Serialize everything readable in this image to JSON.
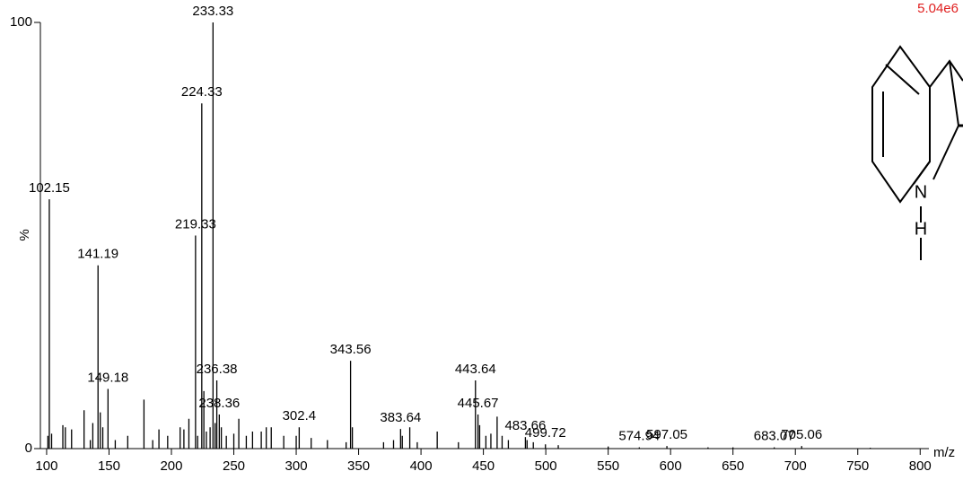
{
  "chart_data": {
    "type": "stick",
    "intensity_label": "5.04e6",
    "xlabel": "m/z",
    "ylabel": "%",
    "xlim": [
      95,
      807
    ],
    "ylim": [
      0,
      100
    ],
    "xticks": [
      100,
      150,
      200,
      250,
      300,
      350,
      400,
      450,
      500,
      550,
      600,
      650,
      700,
      750,
      800
    ],
    "yticks": [
      0,
      100
    ],
    "series": [
      {
        "color": "#000000",
        "show_labels": true,
        "x": [
          102.15,
          141.19,
          149.18,
          219.33,
          224.33,
          233.33,
          236.38,
          238.36,
          302.4,
          343.56,
          383.64,
          443.64,
          445.67,
          483.66,
          499.72,
          574.94,
          597.05,
          683.07,
          705.06
        ],
        "values": [
          58.5,
          43,
          14,
          50,
          81,
          100,
          16,
          8,
          5,
          20.6,
          4.6,
          16,
          8,
          2.7,
          1,
          0.3,
          0.6,
          0.3,
          0.6
        ]
      },
      {
        "color": "#000000",
        "show_labels": false,
        "x": [
          101,
          104,
          113,
          115,
          120,
          130,
          135,
          137,
          143,
          145,
          155,
          165,
          178,
          185,
          190,
          197,
          207,
          210,
          214,
          221,
          226,
          228,
          231,
          235,
          240,
          244,
          250,
          254,
          260,
          265,
          272,
          276,
          280,
          290,
          300,
          312,
          325,
          340,
          345,
          370,
          378,
          385,
          391,
          397,
          413,
          430,
          447,
          452,
          456,
          461,
          465,
          470,
          485,
          490,
          510,
          550,
          630,
          650,
          760
        ],
        "values": [
          3,
          3.5,
          5.5,
          5,
          4.5,
          9,
          2,
          6,
          8.5,
          5,
          2,
          3,
          11.5,
          2,
          4.5,
          3,
          5,
          4.5,
          7,
          3,
          13.5,
          4,
          5,
          6,
          5,
          3,
          3.5,
          7,
          3,
          4,
          4,
          5,
          5,
          3,
          3,
          2.5,
          2,
          1.5,
          5,
          1.5,
          2,
          3,
          5,
          1.5,
          4,
          1.5,
          5.5,
          3,
          3.5,
          7.5,
          3,
          2,
          2,
          1.5,
          0.8,
          0.5,
          0.3,
          0.3,
          0.2
        ]
      }
    ]
  },
  "structure": {
    "atoms": [
      "N",
      "H"
    ]
  }
}
